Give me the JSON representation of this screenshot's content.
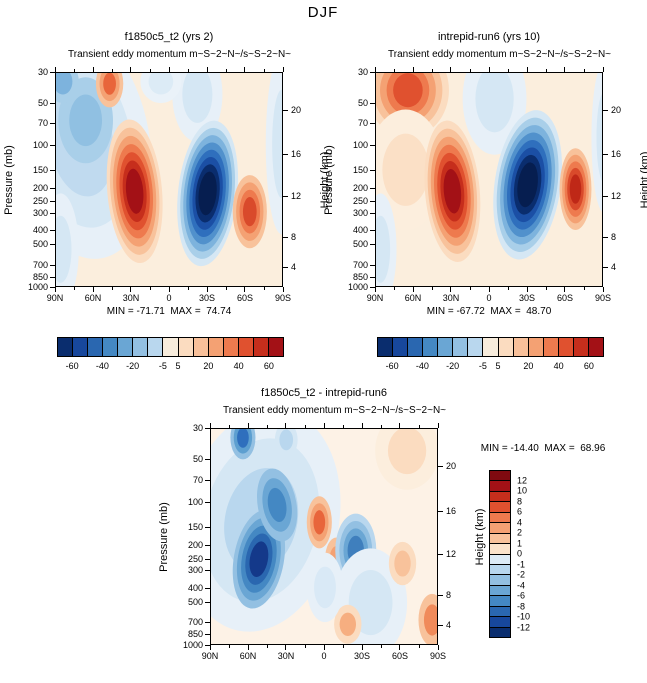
{
  "figure": {
    "title": "DJF"
  },
  "axes": {
    "pressure_label": "Pressure (mb)",
    "height_label": "Height (km)",
    "lat_ticks": [
      {
        "label": "90N",
        "f": 0
      },
      {
        "label": "60N",
        "f": 0.1667
      },
      {
        "label": "30N",
        "f": 0.3333
      },
      {
        "label": "0",
        "f": 0.5
      },
      {
        "label": "30S",
        "f": 0.6667
      },
      {
        "label": "60S",
        "f": 0.8333
      },
      {
        "label": "90S",
        "f": 1
      }
    ],
    "pressure_ticks": [
      {
        "label": "30",
        "f": 0
      },
      {
        "label": "50",
        "f": 0.146
      },
      {
        "label": "70",
        "f": 0.2416
      },
      {
        "label": "100",
        "f": 0.3434
      },
      {
        "label": "150",
        "f": 0.459
      },
      {
        "label": "200",
        "f": 0.541
      },
      {
        "label": "250",
        "f": 0.604
      },
      {
        "label": "300",
        "f": 0.6567
      },
      {
        "label": "400",
        "f": 0.7387
      },
      {
        "label": "500",
        "f": 0.8023
      },
      {
        "label": "700",
        "f": 0.898
      },
      {
        "label": "850",
        "f": 0.9535
      },
      {
        "label": "1000",
        "f": 1
      }
    ],
    "height_ticks": [
      {
        "label": "20",
        "f": 0.177
      },
      {
        "label": "16",
        "f": 0.386
      },
      {
        "label": "12",
        "f": 0.581
      },
      {
        "label": "8",
        "f": 0.772
      },
      {
        "label": "4",
        "f": 0.911
      }
    ]
  },
  "chart_data": [
    {
      "id": "f1850c5_t2",
      "type": "contour",
      "title": "f1850c5_t2 (yrs 2)",
      "subtitle_left": "Transient eddy momentum",
      "subtitle_right": "m~S~2~N~/s~S~2~N~",
      "stats_text": "MIN = -71.71  MAX =  74.74",
      "min": -71.71,
      "max": 74.74,
      "base_color": "#fbeedd",
      "colorbar": {
        "orientation": "horizontal",
        "levels": [
          -60,
          -50,
          -40,
          -30,
          -20,
          -10,
          -5,
          5,
          10,
          20,
          30,
          40,
          50,
          60
        ],
        "colors": [
          "#0a2d6e",
          "#17479c",
          "#2a67b0",
          "#4488c3",
          "#6aa6d4",
          "#93c0e2",
          "#b9d7ee",
          "#f7ecdc",
          "#fbdcc0",
          "#f8c09a",
          "#f4a173",
          "#ee7a4e",
          "#e0512f",
          "#c62e1c",
          "#a31116"
        ],
        "labels": [
          {
            "text": "-60",
            "f": 0.0667
          },
          {
            "text": "-40",
            "f": 0.2
          },
          {
            "text": "-20",
            "f": 0.3333
          },
          {
            "text": "-5",
            "f": 0.4667
          },
          {
            "text": "5",
            "f": 0.5333
          },
          {
            "text": "20",
            "f": 0.6667
          },
          {
            "text": "40",
            "f": 0.8
          },
          {
            "text": "60",
            "f": 0.9333
          }
        ]
      },
      "field_blobs": [
        {
          "desc": "light blue region over NH mid-high latitudes",
          "x": 0.11,
          "y": 0.32,
          "rx": 0.3,
          "ry": 0.55,
          "rot": -10,
          "colors": [
            "#e7f0f8",
            "#d5e7f4",
            "#c0daef"
          ]
        },
        {
          "desc": "medium blue core near 70N 70-150mb",
          "x": 0.13,
          "y": 0.22,
          "rx": 0.12,
          "ry": 0.2,
          "rot": 0,
          "colors": [
            "#a9cfe9",
            "#90c0e2"
          ]
        },
        {
          "desc": "blue patch top-left corner",
          "x": 0.03,
          "y": 0.04,
          "rx": 0.07,
          "ry": 0.1,
          "rot": 0,
          "colors": [
            "#a9cfe9",
            "#7db3dd"
          ]
        },
        {
          "desc": "light blue along left edge near surface",
          "x": 0.02,
          "y": 0.82,
          "rx": 0.08,
          "ry": 0.26,
          "rot": 0,
          "colors": [
            "#e7f0f8",
            "#d5e7f4"
          ]
        },
        {
          "desc": "positive center ~55N 30-50mb",
          "x": 0.235,
          "y": 0.05,
          "rx": 0.06,
          "ry": 0.11,
          "rot": 0,
          "colors": [
            "#f8c29b",
            "#f4a173",
            "#e8653b"
          ]
        },
        {
          "desc": "main positive center ~30N 200-250mb (max 74.74)",
          "x": 0.345,
          "y": 0.55,
          "rx": 0.12,
          "ry": 0.335,
          "rot": -5,
          "colors": [
            "#fbdcc0",
            "#f8c29b",
            "#f4a173",
            "#ee7a4e",
            "#e0512f",
            "#c62e1c",
            "#a31116"
          ]
        },
        {
          "desc": "light blue upper levels near 20-40S",
          "x": 0.62,
          "y": 0.1,
          "rx": 0.11,
          "ry": 0.22,
          "rot": 0,
          "colors": [
            "#e7f0f8",
            "#d5e7f4"
          ]
        },
        {
          "desc": "main negative center ~33S 200-250mb (min -71.71)",
          "x": 0.665,
          "y": 0.56,
          "rx": 0.13,
          "ry": 0.34,
          "rot": 6,
          "colors": [
            "#d5e7f4",
            "#a9cfe9",
            "#7db3dd",
            "#5191cc",
            "#2f6fbd",
            "#1b4fa5",
            "#0a2d6e",
            "#061e50"
          ]
        },
        {
          "desc": "positive center ~60S 300mb",
          "x": 0.85,
          "y": 0.645,
          "rx": 0.075,
          "ry": 0.17,
          "rot": 0,
          "colors": [
            "#f8c29b",
            "#f4a173",
            "#ee7a4e",
            "#d94a2b"
          ]
        },
        {
          "desc": "light blue near 90S upper levels",
          "x": 0.99,
          "y": 0.33,
          "rx": 0.07,
          "ry": 0.42,
          "rot": 0,
          "colors": [
            "#e7f0f8",
            "#d5e7f4"
          ]
        },
        {
          "desc": "light blue top near equator",
          "x": 0.46,
          "y": 0.04,
          "rx": 0.09,
          "ry": 0.1,
          "rot": 0,
          "colors": [
            "#eaf2f9",
            "#dcebf6"
          ]
        }
      ]
    },
    {
      "id": "intrepid-run6",
      "type": "contour",
      "title": "intrepid-run6 (yrs 10)",
      "subtitle_left": "Transient eddy momentum",
      "subtitle_right": "m~S~2~N~/s~S~2~N~",
      "stats_text": "MIN = -67.72  MAX =  48.70",
      "min": -67.72,
      "max": 48.7,
      "base_color": "#fbeedd",
      "colorbar": {
        "orientation": "horizontal",
        "levels": [
          -60,
          -50,
          -40,
          -30,
          -20,
          -10,
          -5,
          5,
          10,
          20,
          30,
          40,
          50,
          60
        ],
        "colors": [
          "#0a2d6e",
          "#17479c",
          "#2a67b0",
          "#4488c3",
          "#6aa6d4",
          "#93c0e2",
          "#b9d7ee",
          "#f7ecdc",
          "#fbdcc0",
          "#f8c09a",
          "#f4a173",
          "#ee7a4e",
          "#e0512f",
          "#c62e1c",
          "#a31116"
        ],
        "labels": [
          {
            "text": "-60",
            "f": 0.0667
          },
          {
            "text": "-40",
            "f": 0.2
          },
          {
            "text": "-20",
            "f": 0.3333
          },
          {
            "text": "-5",
            "f": 0.4667
          },
          {
            "text": "5",
            "f": 0.5333
          },
          {
            "text": "20",
            "f": 0.6667
          },
          {
            "text": "40",
            "f": 0.8
          },
          {
            "text": "60",
            "f": 0.9333
          }
        ]
      },
      "field_blobs": [
        {
          "desc": "positive region NH high latitudes upper levels",
          "x": 0.14,
          "y": 0.08,
          "rx": 0.18,
          "ry": 0.22,
          "rot": 0,
          "colors": [
            "#fbdcc0",
            "#f8c29b",
            "#f4a173",
            "#ee7a4e",
            "#e0512f"
          ]
        },
        {
          "desc": "faint warm region NH mid troposphere",
          "x": 0.13,
          "y": 0.45,
          "rx": 0.17,
          "ry": 0.28,
          "rot": 0,
          "colors": [
            "#fceedd",
            "#fbe0c6"
          ]
        },
        {
          "desc": "light blue along left edge near surface",
          "x": 0.02,
          "y": 0.82,
          "rx": 0.07,
          "ry": 0.26,
          "rot": 0,
          "colors": [
            "#e7f0f8",
            "#d5e7f4"
          ]
        },
        {
          "desc": "main positive center ~30N 200-250mb (max 48.70)",
          "x": 0.335,
          "y": 0.55,
          "rx": 0.12,
          "ry": 0.33,
          "rot": -5,
          "colors": [
            "#fbdcc0",
            "#f8c29b",
            "#f4a173",
            "#ee7a4e",
            "#e0512f",
            "#c62e1c",
            "#a31116"
          ]
        },
        {
          "desc": "light blue upper levels equator to 30S",
          "x": 0.52,
          "y": 0.12,
          "rx": 0.14,
          "ry": 0.26,
          "rot": 0,
          "colors": [
            "#e7f0f8",
            "#d5e7f4"
          ]
        },
        {
          "desc": "main negative center ~35S 200-250mb (min -67.72)",
          "x": 0.665,
          "y": 0.52,
          "rx": 0.145,
          "ry": 0.35,
          "rot": 8,
          "colors": [
            "#d5e7f4",
            "#a9cfe9",
            "#7db3dd",
            "#5191cc",
            "#2f6fbd",
            "#1b4fa5",
            "#0a2d6e",
            "#061e50"
          ]
        },
        {
          "desc": "positive center ~65S 200-300mb",
          "x": 0.875,
          "y": 0.54,
          "rx": 0.07,
          "ry": 0.19,
          "rot": 0,
          "colors": [
            "#f8c29b",
            "#f4a173",
            "#ee7a4e",
            "#d94a2b",
            "#bf2817"
          ]
        },
        {
          "desc": "light blue near 90S upper levels",
          "x": 1.0,
          "y": 0.3,
          "rx": 0.055,
          "ry": 0.35,
          "rot": 0,
          "colors": [
            "#e7f0f8",
            "#d5e7f4"
          ]
        }
      ]
    },
    {
      "id": "difference",
      "type": "contour",
      "title": "f1850c5_t2 - intrepid-run6",
      "subtitle_left": "Transient eddy momentum",
      "subtitle_right": "m~S~2~N~/s~S~2~N~",
      "stats_text": "MIN = -14.40  MAX =  68.96",
      "min": -14.4,
      "max": 68.96,
      "base_color": "#fdf2e6",
      "colorbar": {
        "orientation": "vertical",
        "levels": [
          12,
          10,
          8,
          6,
          4,
          2,
          1,
          0,
          -1,
          -2,
          -4,
          -6,
          -8,
          -10,
          -12
        ],
        "colors": [
          "#7f0a10",
          "#a31116",
          "#c62e1c",
          "#e0512f",
          "#ee7a4e",
          "#f4a173",
          "#f8c29b",
          "#fbe3cb",
          "#ddebf6",
          "#b9d7ee",
          "#93c0e2",
          "#6aa6d4",
          "#4488c3",
          "#2a67b0",
          "#17479c",
          "#0a2d6e"
        ],
        "labels": [
          {
            "text": "12",
            "f": 0.0625
          },
          {
            "text": "10",
            "f": 0.125
          },
          {
            "text": "8",
            "f": 0.1875
          },
          {
            "text": "6",
            "f": 0.25
          },
          {
            "text": "4",
            "f": 0.3125
          },
          {
            "text": "2",
            "f": 0.375
          },
          {
            "text": "1",
            "f": 0.4375
          },
          {
            "text": "0",
            "f": 0.5
          },
          {
            "text": "-1",
            "f": 0.5625
          },
          {
            "text": "-2",
            "f": 0.625
          },
          {
            "text": "-4",
            "f": 0.6875
          },
          {
            "text": "-6",
            "f": 0.75
          },
          {
            "text": "-8",
            "f": 0.8125
          },
          {
            "text": "-10",
            "f": 0.875
          },
          {
            "text": "-12",
            "f": 0.9375
          }
        ]
      },
      "field_blobs": [
        {
          "desc": "broad negative region NH troposphere",
          "x": 0.22,
          "y": 0.42,
          "rx": 0.34,
          "ry": 0.52,
          "rot": 12,
          "colors": [
            "#e7f0f8",
            "#d5e7f4",
            "#b9d7ee"
          ]
        },
        {
          "desc": "strong negative core ~55N 250-300mb",
          "x": 0.21,
          "y": 0.6,
          "rx": 0.11,
          "ry": 0.23,
          "rot": 10,
          "colors": [
            "#93c0e2",
            "#6aa6d4",
            "#4488c3",
            "#2a67b0",
            "#14398a"
          ]
        },
        {
          "desc": "secondary negative core ~40N 130mb",
          "x": 0.29,
          "y": 0.35,
          "rx": 0.085,
          "ry": 0.17,
          "rot": -10,
          "colors": [
            "#93c0e2",
            "#6aa6d4",
            "#4488c3"
          ]
        },
        {
          "desc": "negative blob ~65N 30-40mb",
          "x": 0.14,
          "y": 0.04,
          "rx": 0.055,
          "ry": 0.1,
          "rot": 0,
          "colors": [
            "#93c0e2",
            "#5d9fd0",
            "#2f6fbd"
          ]
        },
        {
          "desc": "light negative top near 35N",
          "x": 0.33,
          "y": 0.05,
          "rx": 0.05,
          "ry": 0.08,
          "rot": 0,
          "colors": [
            "#d5e7f4",
            "#b9d7ee"
          ]
        },
        {
          "desc": "positive spot near equator 150mb",
          "x": 0.475,
          "y": 0.43,
          "rx": 0.055,
          "ry": 0.12,
          "rot": 0,
          "colors": [
            "#f8c29b",
            "#f4a173",
            "#e8653b"
          ]
        },
        {
          "desc": "positive spot ~10S 250mb",
          "x": 0.55,
          "y": 0.6,
          "rx": 0.05,
          "ry": 0.1,
          "rot": 0,
          "colors": [
            "#f8c29b",
            "#f4a173"
          ]
        },
        {
          "desc": "negative center ~35S 250mb",
          "x": 0.635,
          "y": 0.56,
          "rx": 0.09,
          "ry": 0.17,
          "rot": 0,
          "colors": [
            "#b9d7ee",
            "#93c0e2",
            "#6aa6d4",
            "#3f7fbd"
          ]
        },
        {
          "desc": "light negative SH lower troposphere",
          "x": 0.7,
          "y": 0.8,
          "rx": 0.16,
          "ry": 0.25,
          "rot": 0,
          "colors": [
            "#e7f0f8",
            "#d5e7f4"
          ]
        },
        {
          "desc": "light positive ~65S 300mb",
          "x": 0.84,
          "y": 0.62,
          "rx": 0.06,
          "ry": 0.1,
          "rot": 0,
          "colors": [
            "#fbdcc0",
            "#f8c29b"
          ]
        },
        {
          "desc": "light positive upper levels near pole S",
          "x": 0.86,
          "y": 0.1,
          "rx": 0.14,
          "ry": 0.18,
          "rot": 0,
          "colors": [
            "#fceedd",
            "#fbdcc0"
          ]
        },
        {
          "desc": "positive bottom right corner",
          "x": 0.97,
          "y": 0.88,
          "rx": 0.06,
          "ry": 0.12,
          "rot": 0,
          "colors": [
            "#f8c29b",
            "#f08a5a"
          ]
        },
        {
          "desc": "positive near 30S surface",
          "x": 0.6,
          "y": 0.9,
          "rx": 0.06,
          "ry": 0.09,
          "rot": 0,
          "colors": [
            "#fbdcc0",
            "#f6ae80"
          ]
        },
        {
          "desc": "light negative near equator 500mb",
          "x": 0.5,
          "y": 0.73,
          "rx": 0.08,
          "ry": 0.16,
          "rot": 0,
          "colors": [
            "#e7f0f8",
            "#d9e9f6"
          ]
        }
      ]
    }
  ]
}
